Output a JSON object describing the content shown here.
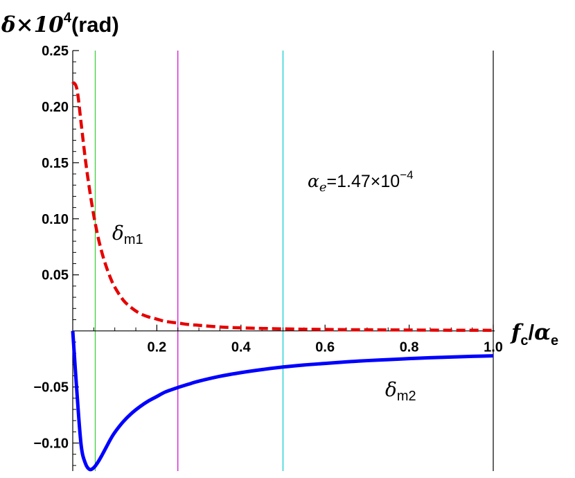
{
  "chart_data": {
    "type": "line",
    "x": [
      0.0,
      0.01,
      0.02,
      0.03,
      0.04,
      0.05,
      0.06,
      0.07,
      0.08,
      0.09,
      0.1,
      0.12,
      0.14,
      0.16,
      0.18,
      0.2,
      0.22,
      0.25,
      0.28,
      0.3,
      0.35,
      0.4,
      0.45,
      0.5,
      0.55,
      0.6,
      0.65,
      0.7,
      0.75,
      0.8,
      0.85,
      0.9,
      0.95,
      1.0
    ],
    "series": [
      {
        "name": "δm1",
        "color": "#e60000",
        "dash": "dashed",
        "values": [
          0.222,
          0.2155,
          0.185,
          0.153,
          0.126,
          0.103,
          0.084,
          0.069,
          0.057,
          0.047,
          0.039,
          0.0275,
          0.0205,
          0.0155,
          0.0125,
          0.0105,
          0.0085,
          0.007,
          0.0055,
          0.005,
          0.0035,
          0.0027,
          0.0022,
          0.0018,
          0.0015,
          0.0013,
          0.0011,
          0.001,
          0.0009,
          0.0008,
          0.0007,
          0.0006,
          0.0006,
          0.0005
        ]
      },
      {
        "name": "δm2",
        "color": "#0000ff",
        "dash": "solid",
        "values": [
          0.0,
          -0.055,
          -0.102,
          -0.118,
          -0.1235,
          -0.122,
          -0.117,
          -0.1105,
          -0.1035,
          -0.0965,
          -0.0905,
          -0.081,
          -0.0735,
          -0.0675,
          -0.0625,
          -0.0585,
          -0.0545,
          -0.0505,
          -0.047,
          -0.0448,
          -0.0405,
          -0.0372,
          -0.0345,
          -0.0322,
          -0.0304,
          -0.029,
          -0.0276,
          -0.0265,
          -0.0256,
          -0.0247,
          -0.0239,
          -0.0233,
          -0.0227,
          -0.0222
        ]
      }
    ],
    "xlabel": {
      "main": "f",
      "sub1": "c",
      "slash": "/",
      "alpha": "α",
      "sub2": "e"
    },
    "ylabel": {
      "main": "δ×10",
      "sup": "4",
      "unit": "(rad)"
    },
    "xlim": [
      0,
      1.0
    ],
    "ylim": [
      -0.125,
      0.25
    ],
    "xticks": [
      {
        "value": 0.2,
        "label": "0.2"
      },
      {
        "value": 0.4,
        "label": "0.4"
      },
      {
        "value": 0.6,
        "label": "0.6"
      },
      {
        "value": 0.8,
        "label": "0.8"
      },
      {
        "value": 1.0,
        "label": "1.0"
      }
    ],
    "yticks": [
      {
        "value": 0.25,
        "label": "0.25"
      },
      {
        "value": 0.2,
        "label": "0.20"
      },
      {
        "value": 0.15,
        "label": "0.15"
      },
      {
        "value": 0.1,
        "label": "0.10"
      },
      {
        "value": 0.05,
        "label": "0.05"
      },
      {
        "value": -0.05,
        "label": "−0.05"
      },
      {
        "value": -0.1,
        "label": "−0.10"
      }
    ],
    "vlines": [
      {
        "x": 0.0535,
        "color": "#33cc33"
      },
      {
        "x": 0.25,
        "color": "#cc00cc"
      },
      {
        "x": 0.5,
        "color": "#00cccc"
      },
      {
        "x": 1.0,
        "color": "#000000"
      }
    ],
    "annotations": {
      "alpha_e": {
        "alpha": "α",
        "sub": "e",
        "text": "=1.47×10",
        "sup": "−4"
      },
      "delta_m1": {
        "delta": "δ",
        "sub": "m1"
      },
      "delta_m2": {
        "delta": "δ",
        "sub": "m2"
      }
    },
    "grid": false,
    "legend": "none"
  }
}
